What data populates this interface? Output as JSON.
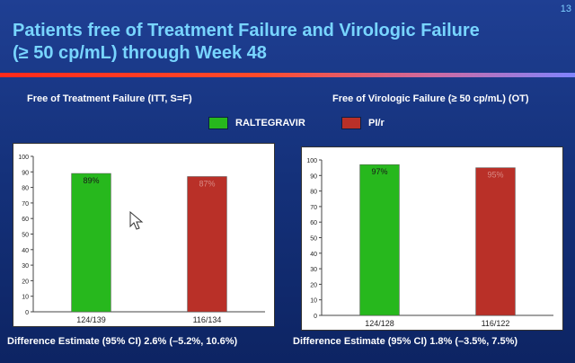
{
  "slide_number": "13",
  "title_line1": "Patients free of Treatment Failure and Virologic Failure",
  "title_line2": "(≥ 50 cp/mL) through Week 48",
  "colors": {
    "raltegravir": "#27b81d",
    "pir": "#b93028"
  },
  "legend": [
    {
      "label": "RALTEGRAVIR",
      "color": "#27b81d"
    },
    {
      "label": "PI/r",
      "color": "#b93028"
    }
  ],
  "charts": [
    {
      "subtitle": "Free of Treatment Failure (ITT, S=F)",
      "footnote": "Difference Estimate (95% CI) 2.6% (–5.2%, 10.6%)"
    },
    {
      "subtitle": "Free of Virologic Failure (≥ 50 cp/mL) (OT)",
      "footnote": "Difference Estimate (95% CI)  1.8% (–3.5%, 7.5%)"
    }
  ],
  "chart_data": [
    {
      "type": "bar",
      "categories": [
        "124/139",
        "116/134"
      ],
      "values": [
        89,
        87
      ],
      "labels": [
        "89%",
        "87%"
      ],
      "colors": [
        "#27b81d",
        "#b93028"
      ],
      "ylim": [
        0,
        100
      ],
      "yticks": [
        0,
        10,
        20,
        30,
        40,
        50,
        60,
        70,
        80,
        90,
        100
      ]
    },
    {
      "type": "bar",
      "categories": [
        "124/128",
        "116/122"
      ],
      "values": [
        97,
        95
      ],
      "labels": [
        "97%",
        "95%"
      ],
      "colors": [
        "#27b81d",
        "#b93028"
      ],
      "ylim": [
        0,
        100
      ],
      "yticks": [
        0,
        10,
        20,
        30,
        40,
        50,
        60,
        70,
        80,
        90,
        100
      ]
    }
  ]
}
